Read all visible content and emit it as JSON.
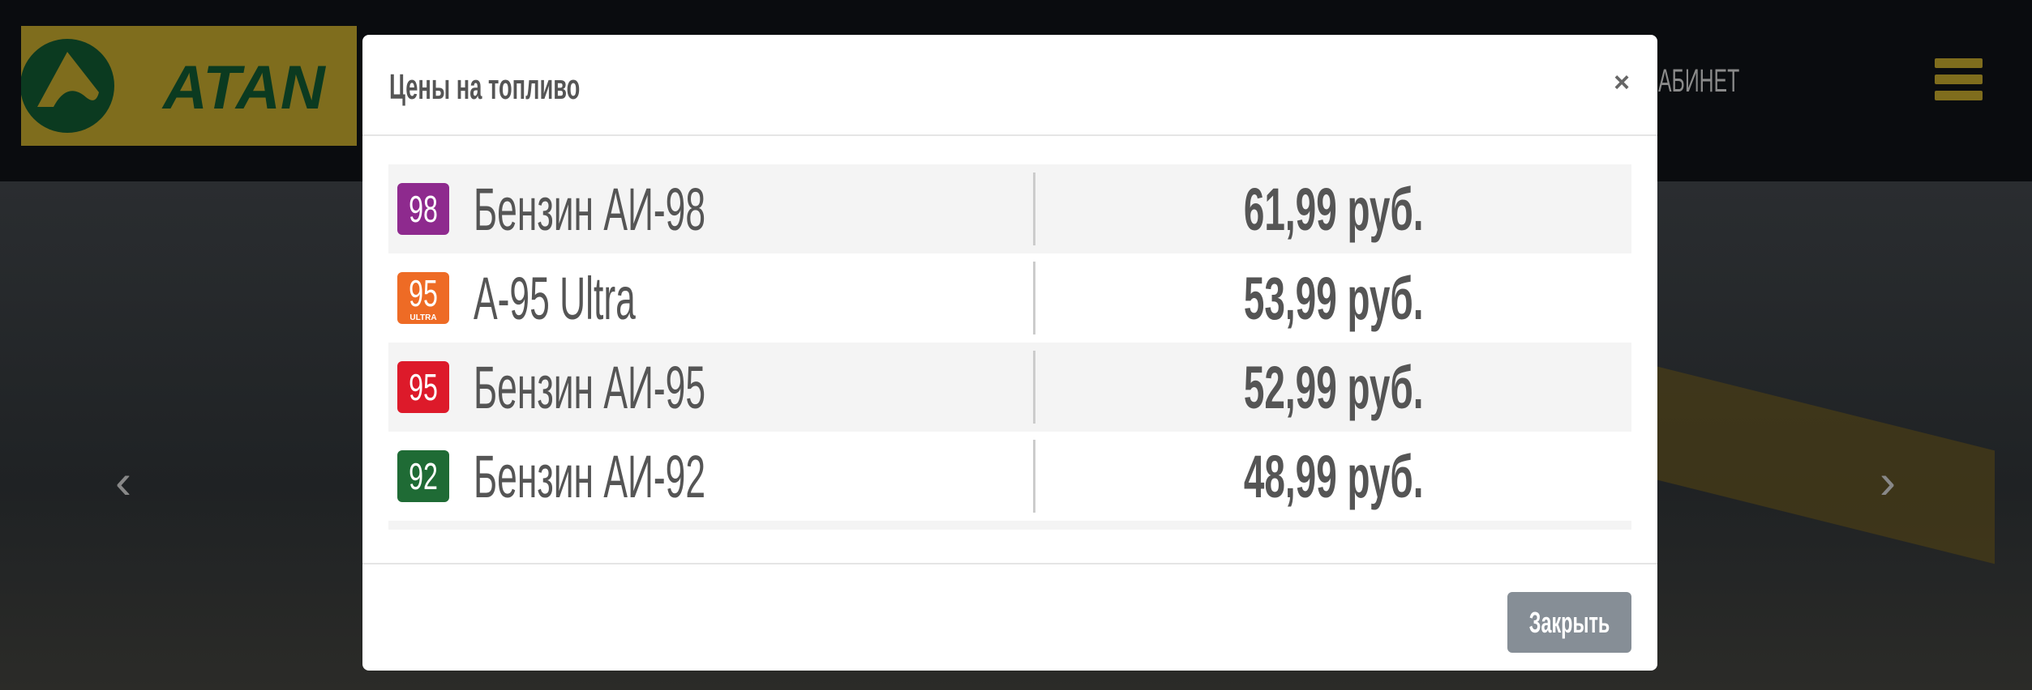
{
  "header": {
    "logo_text": "ATAN",
    "cabinet_label": "АБИНЕТ",
    "colors": {
      "logo_bg": "#7f6d1d",
      "logo_fg": "#0b3a20"
    }
  },
  "carousel": {
    "prev_icon": "chevron-left-icon",
    "next_icon": "chevron-right-icon"
  },
  "modal": {
    "title": "Цены на топливо",
    "close_icon": "×",
    "rows": [
      {
        "badge": "98",
        "badge_sub": "",
        "color": "#8e2a8e",
        "name": "Бензин АИ-98",
        "price": "61,99 руб."
      },
      {
        "badge": "95",
        "badge_sub": "ULTRA",
        "color": "#ee6b25",
        "name": "А-95 Ultra",
        "price": "53,99 руб."
      },
      {
        "badge": "95",
        "badge_sub": "",
        "color": "#dd1a2a",
        "name": "Бензин АИ-95",
        "price": "52,99 руб."
      },
      {
        "badge": "92",
        "badge_sub": "",
        "color": "#1f6b35",
        "name": "Бензин АИ-92",
        "price": "48,99 руб."
      }
    ],
    "close_button": "Закрыть"
  }
}
